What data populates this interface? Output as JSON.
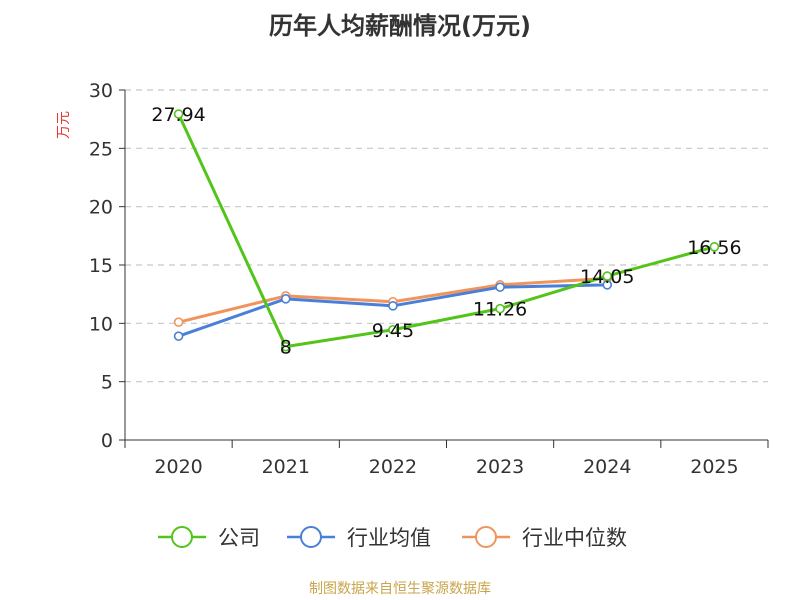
{
  "title": "历年人均薪酬情况(万元)",
  "source": "制图数据来自恒生聚源数据库",
  "chart_data": {
    "type": "line",
    "title": "历年人均薪酬情况(万元)",
    "ylabel": "万元",
    "xlabel": "",
    "categories": [
      "2020",
      "2021",
      "2022",
      "2023",
      "2024",
      "2025"
    ],
    "ylim": [
      0,
      30
    ],
    "yticks": [
      0,
      5,
      10,
      15,
      20,
      25,
      30
    ],
    "grid": "horizontal-dashed",
    "legend_position": "bottom",
    "series": [
      {
        "name": "公司",
        "color": "#52c41a",
        "values": [
          27.94,
          8,
          9.45,
          11.26,
          14.05,
          16.56
        ],
        "labels": [
          "27.94",
          "8",
          "9.45",
          "11.26",
          "14.05",
          "16.56"
        ]
      },
      {
        "name": "行业均值",
        "color": "#4a7fd8",
        "values": [
          8.9,
          12.1,
          11.5,
          13.1,
          13.3,
          null
        ]
      },
      {
        "name": "行业中位数",
        "color": "#f0945d",
        "values": [
          10.1,
          12.35,
          11.85,
          13.3,
          13.85,
          null
        ]
      }
    ]
  }
}
